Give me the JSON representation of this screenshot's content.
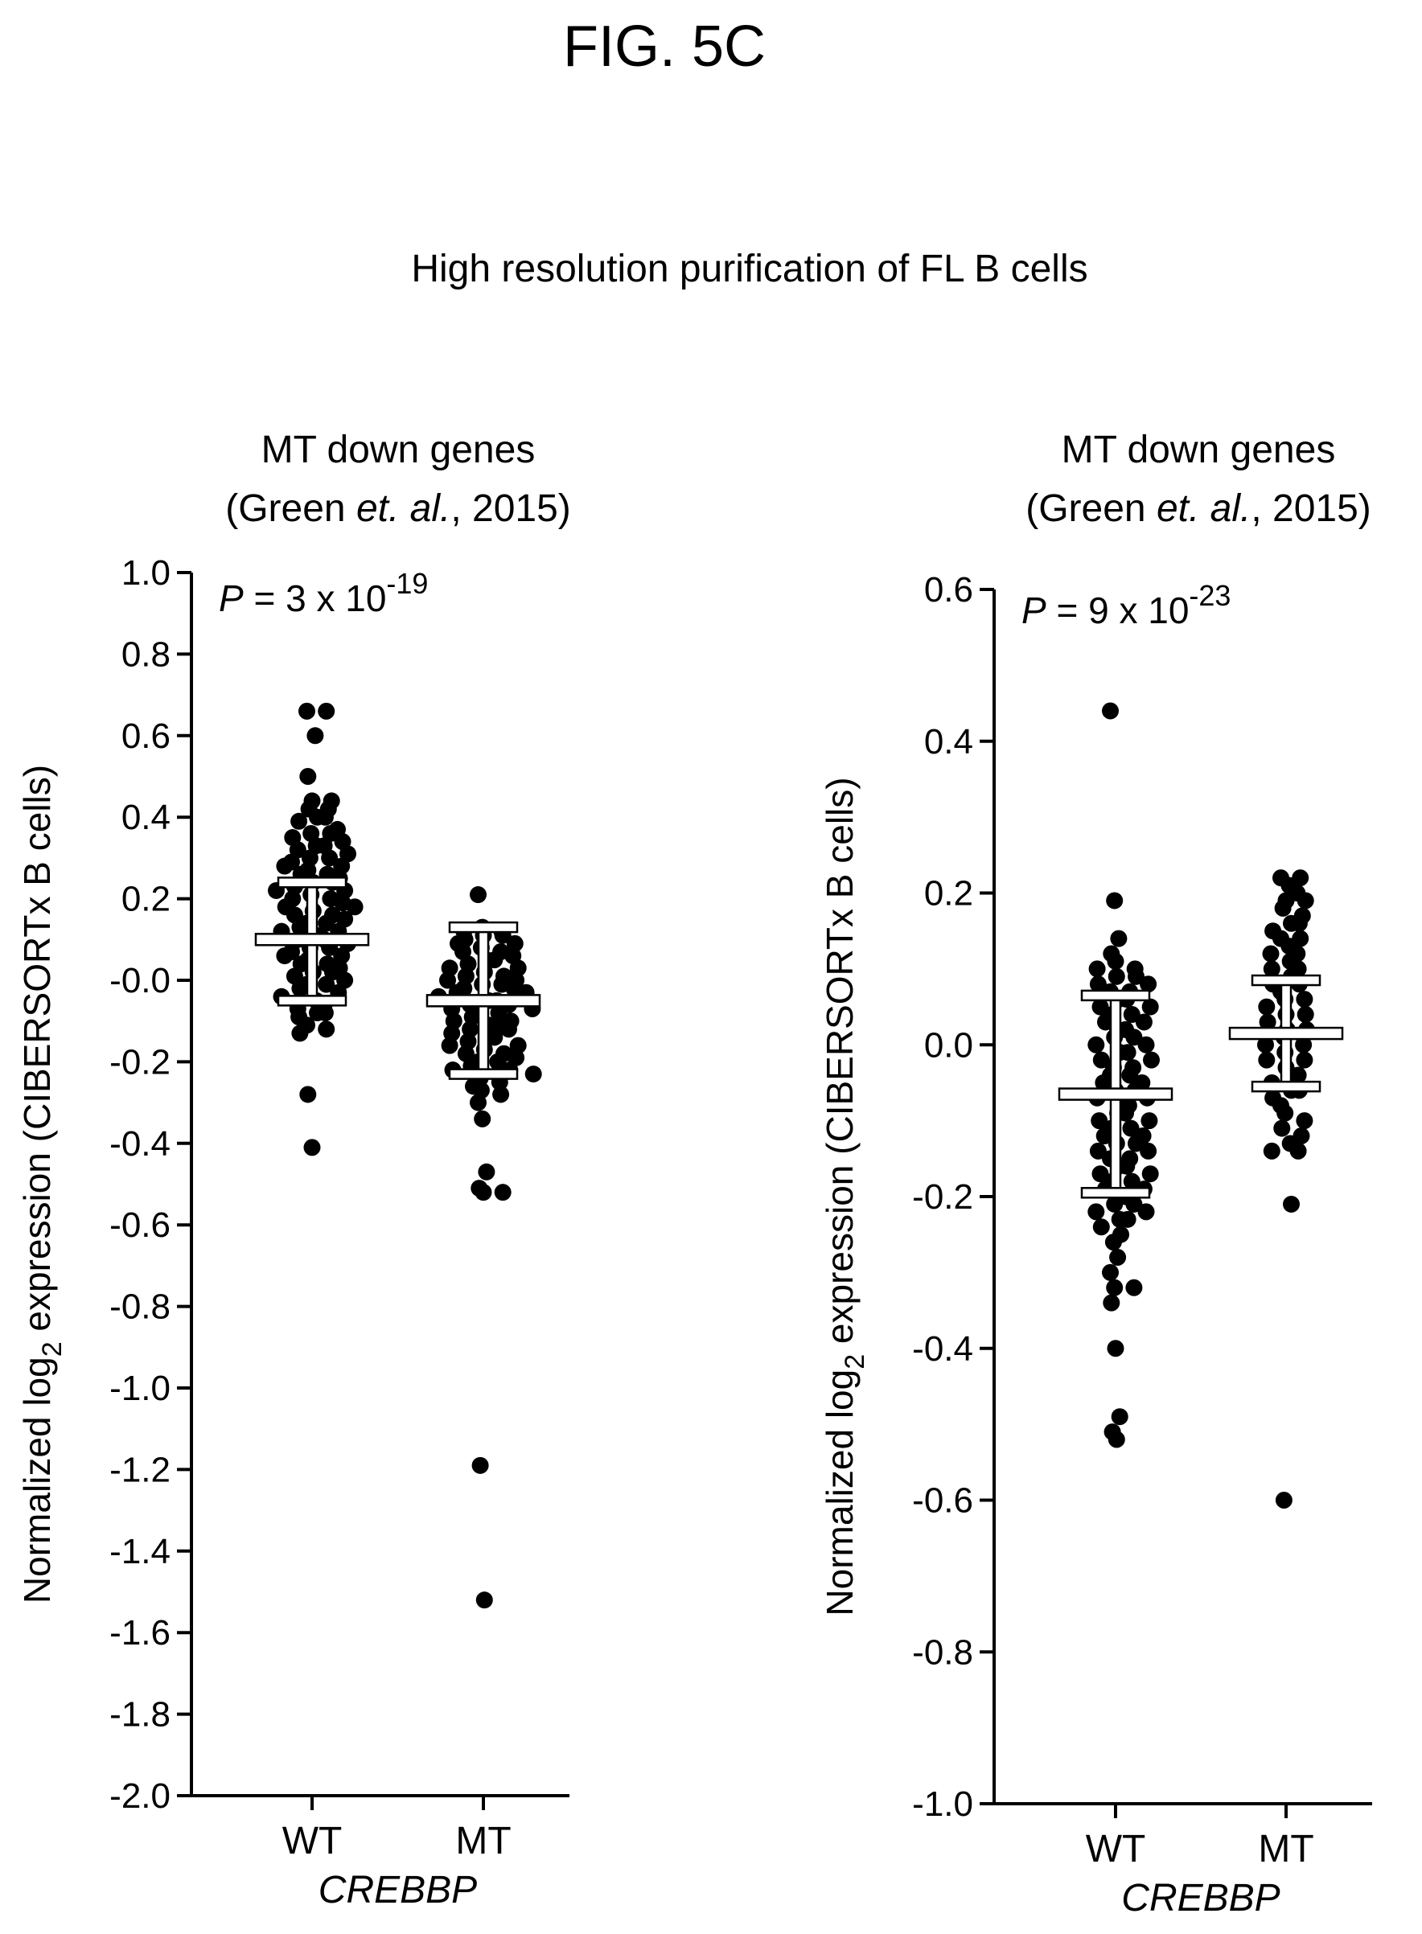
{
  "figure_label": "FIG. 5C",
  "main_title": "High resolution purification of FL B cells",
  "ylabel": {
    "prefix": "Normalized log",
    "subscript": "2",
    "suffix": " expression (CIBERSORTx B cells)"
  },
  "colors": {
    "points": "#000000",
    "bars": "#ffffff",
    "axes": "#000000"
  },
  "chart_data": [
    {
      "type": "scatter",
      "title_line1": "MT down genes",
      "title_line2": {
        "pre": "(Green ",
        "italic": "et. al.",
        "post": ", 2015)"
      },
      "pvalue": {
        "p": "P",
        "text": " = 3 x 10",
        "exponent": "-19"
      },
      "categories": [
        "WT",
        "MT"
      ],
      "xlabel": "CREBBP",
      "ylim": [
        -2.0,
        1.0
      ],
      "yticks": [
        1.0,
        0.8,
        0.6,
        0.4,
        0.2,
        -0.0,
        -0.2,
        -0.4,
        -0.6,
        -0.8,
        -1.0,
        -1.2,
        -1.4,
        -1.6,
        -1.8,
        -2.0
      ],
      "ytick_labels": [
        "1.0",
        "0.8",
        "0.6",
        "0.4",
        "0.2",
        "-0.0",
        "-0.2",
        "-0.4",
        "-0.6",
        "-0.8",
        "-1.0",
        "-1.2",
        "-1.4",
        "-1.6",
        "-1.8",
        "-2.0"
      ],
      "summary": [
        {
          "category": "WT",
          "mean": 0.1,
          "sd_low": -0.05,
          "sd_high": 0.24
        },
        {
          "category": "MT",
          "mean": -0.05,
          "sd_low": -0.23,
          "sd_high": 0.13
        }
      ],
      "series": [
        {
          "category": "WT",
          "values": [
            0.66,
            0.66,
            0.6,
            0.5,
            0.44,
            0.44,
            0.42,
            0.42,
            0.4,
            0.4,
            0.39,
            0.37,
            0.36,
            0.36,
            0.35,
            0.34,
            0.33,
            0.33,
            0.32,
            0.31,
            0.3,
            0.3,
            0.29,
            0.28,
            0.28,
            0.27,
            0.26,
            0.26,
            0.25,
            0.24,
            0.24,
            0.23,
            0.22,
            0.22,
            0.21,
            0.2,
            0.2,
            0.19,
            0.18,
            0.18,
            0.17,
            0.16,
            0.16,
            0.15,
            0.14,
            0.14,
            0.13,
            0.12,
            0.12,
            0.11,
            0.1,
            0.1,
            0.09,
            0.08,
            0.08,
            0.07,
            0.06,
            0.06,
            0.05,
            0.04,
            0.04,
            0.03,
            0.02,
            0.02,
            0.01,
            0.0,
            -0.01,
            -0.01,
            -0.02,
            -0.03,
            -0.04,
            -0.05,
            -0.06,
            -0.07,
            -0.08,
            -0.08,
            -0.09,
            -0.11,
            -0.12,
            -0.13,
            -0.28,
            -0.41
          ]
        },
        {
          "category": "MT",
          "values": [
            0.21,
            0.13,
            0.12,
            0.12,
            0.11,
            0.11,
            0.1,
            0.09,
            0.09,
            0.08,
            0.07,
            0.07,
            0.06,
            0.05,
            0.05,
            0.04,
            0.03,
            0.03,
            0.02,
            0.01,
            0.01,
            0.0,
            0.0,
            -0.01,
            -0.01,
            -0.02,
            -0.02,
            -0.03,
            -0.03,
            -0.04,
            -0.05,
            -0.05,
            -0.06,
            -0.06,
            -0.07,
            -0.07,
            -0.08,
            -0.08,
            -0.09,
            -0.1,
            -0.1,
            -0.11,
            -0.11,
            -0.12,
            -0.12,
            -0.13,
            -0.14,
            -0.14,
            -0.15,
            -0.16,
            -0.16,
            -0.17,
            -0.18,
            -0.18,
            -0.19,
            -0.2,
            -0.2,
            -0.21,
            -0.22,
            -0.22,
            -0.23,
            -0.24,
            -0.25,
            -0.26,
            -0.27,
            -0.28,
            -0.3,
            -0.34,
            -0.47,
            -0.51,
            -0.52,
            -0.52,
            -1.19,
            -1.52
          ]
        }
      ]
    },
    {
      "type": "scatter",
      "title_line1": "MT down genes",
      "title_line2": {
        "pre": "(Green ",
        "italic": "et. al.",
        "post": ", 2015)"
      },
      "pvalue": {
        "p": "P",
        "text": " = 9 x 10",
        "exponent": "-23"
      },
      "categories": [
        "WT",
        "MT"
      ],
      "xlabel": "CREBBP",
      "ylim": [
        -1.0,
        0.6
      ],
      "yticks": [
        0.6,
        0.4,
        0.2,
        0.0,
        -0.2,
        -0.4,
        -0.6,
        -0.8,
        -1.0
      ],
      "ytick_labels": [
        "0.6",
        "0.4",
        "0.2",
        "0.0",
        "-0.2",
        "-0.4",
        "-0.6",
        "-0.8",
        "-1.0"
      ],
      "summary": [
        {
          "category": "WT",
          "mean": -0.065,
          "sd_low": -0.195,
          "sd_high": 0.065
        },
        {
          "category": "MT",
          "mean": 0.015,
          "sd_low": -0.055,
          "sd_high": 0.085
        }
      ],
      "series": [
        {
          "category": "WT",
          "values": [
            0.44,
            0.19,
            0.14,
            0.12,
            0.11,
            0.1,
            0.1,
            0.09,
            0.09,
            0.08,
            0.08,
            0.07,
            0.07,
            0.06,
            0.06,
            0.05,
            0.05,
            0.04,
            0.04,
            0.03,
            0.03,
            0.02,
            0.02,
            0.01,
            0.01,
            0.0,
            0.0,
            -0.01,
            -0.01,
            -0.02,
            -0.02,
            -0.03,
            -0.03,
            -0.04,
            -0.04,
            -0.05,
            -0.05,
            -0.06,
            -0.06,
            -0.07,
            -0.07,
            -0.08,
            -0.08,
            -0.09,
            -0.09,
            -0.1,
            -0.1,
            -0.11,
            -0.11,
            -0.12,
            -0.12,
            -0.13,
            -0.13,
            -0.14,
            -0.14,
            -0.15,
            -0.15,
            -0.16,
            -0.16,
            -0.17,
            -0.17,
            -0.18,
            -0.18,
            -0.19,
            -0.19,
            -0.2,
            -0.2,
            -0.21,
            -0.21,
            -0.22,
            -0.22,
            -0.23,
            -0.23,
            -0.24,
            -0.25,
            -0.26,
            -0.28,
            -0.3,
            -0.32,
            -0.32,
            -0.34,
            -0.4,
            -0.49,
            -0.51,
            -0.52
          ]
        },
        {
          "category": "MT",
          "values": [
            0.22,
            0.22,
            0.21,
            0.2,
            0.19,
            0.19,
            0.18,
            0.17,
            0.16,
            0.16,
            0.15,
            0.14,
            0.14,
            0.13,
            0.12,
            0.12,
            0.11,
            0.1,
            0.1,
            0.09,
            0.08,
            0.08,
            0.07,
            0.06,
            0.06,
            0.05,
            0.04,
            0.04,
            0.03,
            0.02,
            0.02,
            0.01,
            0.0,
            0.0,
            -0.01,
            -0.02,
            -0.02,
            -0.03,
            -0.04,
            -0.04,
            -0.05,
            -0.06,
            -0.06,
            -0.07,
            -0.08,
            -0.09,
            -0.1,
            -0.11,
            -0.12,
            -0.13,
            -0.14,
            -0.14,
            -0.21,
            -0.6
          ]
        }
      ]
    }
  ]
}
